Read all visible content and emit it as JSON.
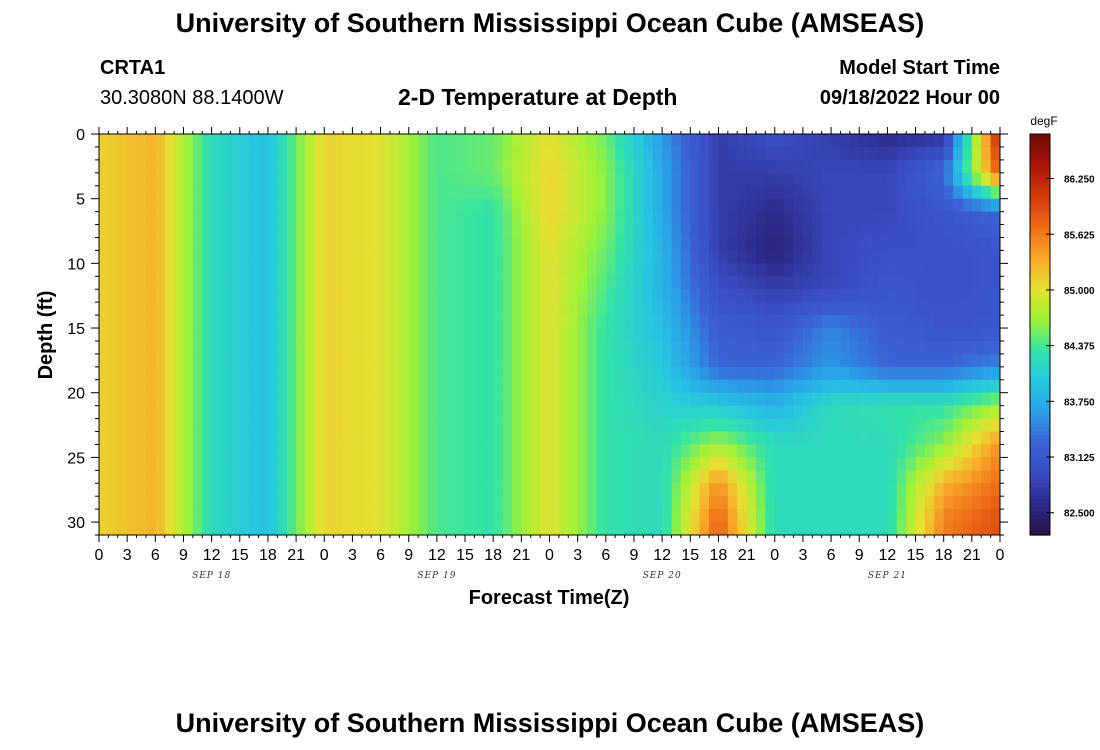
{
  "page": {
    "title": "University of Southern Mississippi Ocean Cube (AMSEAS)",
    "station": "CRTA1",
    "coords": "30.3080N  88.1400W",
    "plot_title": "2-D Temperature at Depth",
    "model_start_label": "Model Start Time",
    "model_start_value": "09/18/2022 Hour 00",
    "footer_title": "University of Southern Mississippi Ocean Cube (AMSEAS)"
  },
  "colors": {
    "palette": [
      "#2a1242",
      "#2c2a8a",
      "#3a4cc2",
      "#3b62d6",
      "#2aa0e8",
      "#27c8e0",
      "#34e3a6",
      "#a0f236",
      "#e6e032",
      "#f9a82a",
      "#ee6a18",
      "#d03a0c",
      "#a8160a",
      "#6e0a06"
    ],
    "background": "#ffffff"
  },
  "chart_data": {
    "type": "heatmap",
    "title": "2-D Temperature at Depth",
    "xlabel": "Forecast Time(Z)",
    "ylabel": "Depth (ft)",
    "x_tick_labels": [
      "0",
      "3",
      "6",
      "9",
      "12",
      "15",
      "18",
      "21",
      "0",
      "3",
      "6",
      "9",
      "12",
      "15",
      "18",
      "21",
      "0",
      "3",
      "6",
      "9",
      "12",
      "15",
      "18",
      "21",
      "0",
      "3",
      "6",
      "9",
      "12",
      "15",
      "18",
      "21",
      "0"
    ],
    "date_labels": [
      {
        "label": "SEP 18",
        "hour": 12
      },
      {
        "label": "SEP 19",
        "hour": 36
      },
      {
        "label": "SEP 20",
        "hour": 60
      },
      {
        "label": "SEP 21",
        "hour": 84
      }
    ],
    "x_range_hours": [
      0,
      96
    ],
    "y_range_ft": [
      0,
      31
    ],
    "y_ticks": [
      0,
      5,
      10,
      15,
      20,
      25,
      30
    ],
    "y_inverted": true,
    "colorbar": {
      "unit": "degF",
      "min": 82.25,
      "max": 86.75,
      "tick_labels": [
        "86.250",
        "85.625",
        "85.000",
        "84.375",
        "83.750",
        "83.125",
        "82.500"
      ],
      "tick_values": [
        86.25,
        85.625,
        85.0,
        84.375,
        83.75,
        83.125,
        82.5
      ]
    },
    "time_hours": [
      0,
      6,
      12,
      18,
      24,
      30,
      36,
      42,
      48,
      54,
      60,
      66,
      72,
      78,
      84,
      90,
      96
    ],
    "depths_ft": [
      0,
      3,
      6,
      9,
      12,
      15,
      18,
      21,
      24,
      27,
      30
    ],
    "values_degF": [
      [
        85.1,
        85.3,
        84.2,
        83.9,
        85.1,
        85.0,
        84.4,
        84.5,
        85.0,
        84.5,
        83.6,
        82.8,
        83.0,
        82.8,
        82.6,
        82.7,
        86.3
      ],
      [
        85.1,
        85.3,
        84.2,
        83.9,
        85.1,
        85.0,
        84.4,
        84.5,
        85.1,
        84.6,
        83.7,
        82.8,
        82.8,
        82.9,
        82.9,
        83.3,
        85.9
      ],
      [
        85.1,
        85.3,
        84.2,
        83.9,
        85.1,
        85.0,
        84.4,
        84.3,
        85.1,
        84.6,
        83.7,
        82.8,
        82.6,
        82.9,
        82.9,
        83.1,
        83.3
      ],
      [
        85.1,
        85.3,
        84.2,
        83.9,
        85.1,
        85.0,
        84.4,
        84.3,
        85.0,
        84.5,
        83.8,
        82.8,
        82.5,
        82.9,
        83.0,
        83.0,
        83.1
      ],
      [
        85.1,
        85.3,
        84.2,
        83.9,
        85.1,
        85.0,
        84.4,
        84.3,
        85.0,
        84.4,
        83.8,
        83.0,
        82.8,
        82.9,
        83.1,
        83.0,
        83.1
      ],
      [
        85.1,
        85.3,
        84.2,
        83.9,
        85.1,
        85.0,
        84.4,
        84.3,
        85.0,
        84.3,
        83.9,
        83.2,
        83.1,
        83.5,
        83.2,
        83.1,
        83.1
      ],
      [
        85.1,
        85.3,
        84.2,
        83.9,
        85.1,
        85.0,
        84.4,
        84.3,
        85.0,
        84.3,
        84.0,
        83.3,
        83.3,
        83.6,
        83.3,
        83.3,
        83.5
      ],
      [
        85.1,
        85.3,
        84.2,
        83.9,
        85.1,
        85.0,
        84.4,
        84.3,
        85.0,
        84.3,
        84.1,
        84.0,
        83.8,
        84.2,
        84.3,
        84.3,
        84.7
      ],
      [
        85.1,
        85.3,
        84.2,
        83.9,
        85.1,
        85.0,
        84.4,
        84.3,
        85.0,
        84.3,
        84.2,
        84.7,
        84.2,
        84.2,
        84.2,
        84.6,
        85.5
      ],
      [
        85.1,
        85.3,
        84.2,
        83.9,
        85.1,
        85.0,
        84.4,
        84.3,
        85.0,
        84.3,
        84.2,
        85.5,
        84.2,
        84.2,
        84.2,
        85.3,
        85.7
      ],
      [
        85.1,
        85.3,
        84.2,
        83.9,
        85.1,
        85.0,
        84.4,
        84.3,
        85.0,
        84.3,
        84.2,
        85.8,
        84.2,
        84.2,
        84.2,
        85.6,
        85.9
      ]
    ]
  }
}
